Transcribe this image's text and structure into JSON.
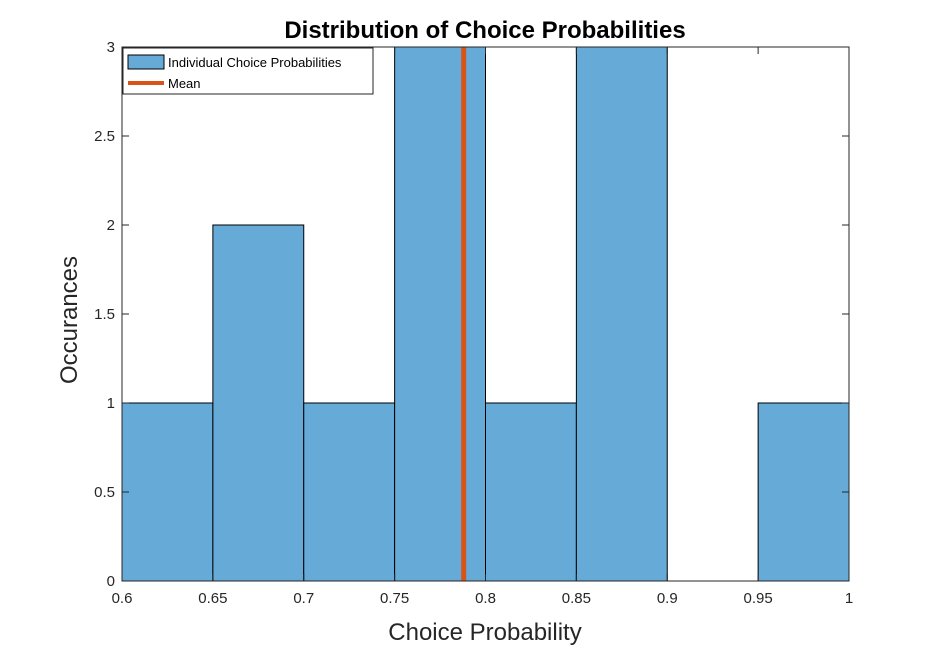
{
  "chart_data": {
    "type": "bar",
    "title": "Distribution of Choice Probabilities",
    "xlabel": "Choice Probability",
    "ylabel": "Occurances",
    "xlim": [
      0.6,
      1.0
    ],
    "ylim": [
      0,
      3
    ],
    "x_ticks": [
      "0.6",
      "0.65",
      "0.7",
      "0.75",
      "0.8",
      "0.85",
      "0.9",
      "0.95",
      "1"
    ],
    "y_ticks": [
      "0",
      "0.5",
      "1",
      "1.5",
      "2",
      "2.5",
      "3"
    ],
    "bin_edges": [
      0.6,
      0.65,
      0.7,
      0.75,
      0.8,
      0.85,
      0.9,
      0.95,
      1.0
    ],
    "series": [
      {
        "name": "Individual Choice Probabilities",
        "values": [
          1,
          2,
          1,
          3,
          1,
          3,
          0,
          1
        ]
      }
    ],
    "mean": {
      "name": "Mean",
      "x": 0.788
    },
    "grid": false,
    "legend_position": "top-left",
    "colors": {
      "bars": "#66aad8",
      "mean_line": "#d95319"
    }
  }
}
